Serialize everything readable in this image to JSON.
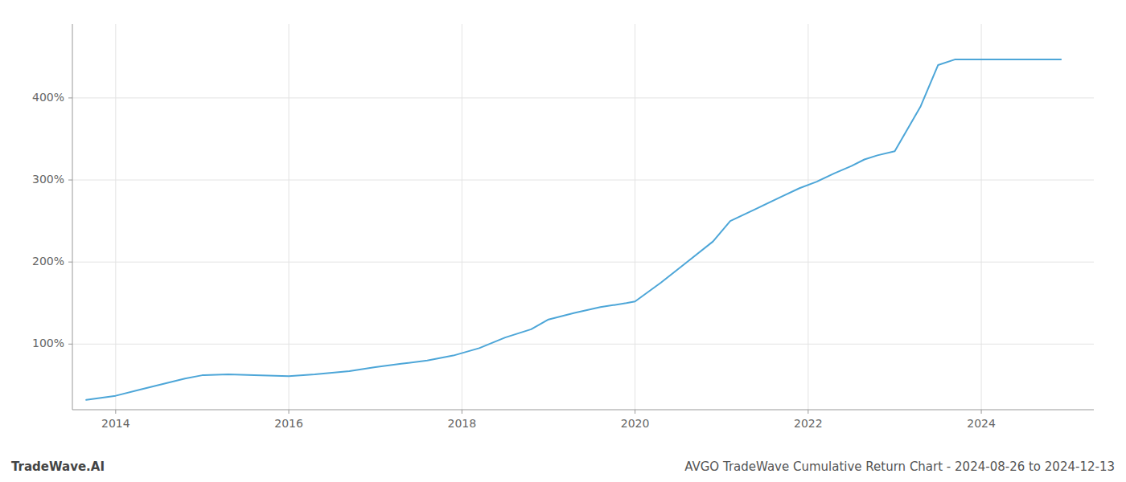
{
  "chart_data": {
    "type": "line",
    "title": "AVGO TradeWave Cumulative Return Chart - 2024-08-26 to 2024-12-13",
    "annotations": [
      "TradeWave.AI"
    ],
    "x": [
      2013.66,
      2014.0,
      2014.3,
      2014.8,
      2015.0,
      2015.3,
      2015.6,
      2016.0,
      2016.3,
      2016.7,
      2017.0,
      2017.3,
      2017.6,
      2017.9,
      2018.2,
      2018.5,
      2018.8,
      2019.0,
      2019.3,
      2019.6,
      2019.9,
      2020.0,
      2020.3,
      2020.6,
      2020.9,
      2021.1,
      2021.4,
      2021.7,
      2021.9,
      2022.1,
      2022.3,
      2022.5,
      2022.65,
      2022.8,
      2023.0,
      2023.3,
      2023.5,
      2023.7,
      2024.0,
      2024.5,
      2024.92
    ],
    "values": [
      32,
      37,
      45,
      58,
      62,
      63,
      62,
      61,
      63,
      67,
      72,
      76,
      80,
      86,
      95,
      108,
      118,
      130,
      138,
      145,
      150,
      152,
      175,
      200,
      225,
      250,
      265,
      280,
      290,
      298,
      308,
      317,
      325,
      330,
      335,
      390,
      440,
      447,
      447,
      447,
      447
    ],
    "color": "#4da6d8",
    "xlim": [
      2013.5,
      2025.3
    ],
    "ylim": [
      20,
      490
    ],
    "xticks": [
      2014,
      2016,
      2018,
      2020,
      2022,
      2024
    ],
    "yticks": [
      {
        "value": 100,
        "label": "100%"
      },
      {
        "value": 200,
        "label": "200%"
      },
      {
        "value": 300,
        "label": "300%"
      },
      {
        "value": 400,
        "label": "400%"
      }
    ],
    "grid": true
  }
}
